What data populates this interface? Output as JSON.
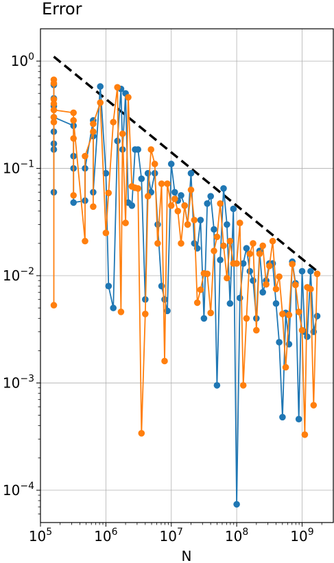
{
  "chart_data": {
    "type": "line",
    "title": "Error",
    "xlabel": "N",
    "ylabel": "",
    "xscale": "log",
    "yscale": "log",
    "xlim": [
      100000,
      3000000000
    ],
    "ylim": [
      5e-05,
      2
    ],
    "xticks": [
      {
        "value": 100000,
        "base": "10",
        "exp": "5"
      },
      {
        "value": 1000000,
        "base": "10",
        "exp": "6"
      },
      {
        "value": 10000000,
        "base": "10",
        "exp": "7"
      },
      {
        "value": 100000000,
        "base": "10",
        "exp": "8"
      },
      {
        "value": 1000000000,
        "base": "10",
        "exp": "9"
      }
    ],
    "yticks": [
      {
        "value": 0.0001,
        "base": "10",
        "exp": "−4"
      },
      {
        "value": 0.001,
        "base": "10",
        "exp": "−3"
      },
      {
        "value": 0.01,
        "base": "10",
        "exp": "−2"
      },
      {
        "value": 0.1,
        "base": "10",
        "exp": "−1"
      },
      {
        "value": 1,
        "base": "10",
        "exp": "0"
      }
    ],
    "grid": true,
    "legend": "none",
    "reference_line": {
      "style": "dashed",
      "color": "#000000",
      "x": [
        160000,
        1700000000
      ],
      "y": [
        1.1,
        0.011
      ]
    },
    "series": [
      {
        "color": "#1f77b4",
        "x": [
          160000,
          160000,
          160000,
          160000,
          160000,
          160000,
          160000,
          160000,
          320000,
          320000,
          320000,
          320000,
          480000,
          480000,
          640000,
          640000,
          640000,
          820000,
          1000000,
          1100000,
          1300000,
          1500000,
          1700000,
          1800000,
          2000000,
          2200000,
          2500000,
          2800000,
          3100000,
          3500000,
          4000000,
          4400000,
          4900000,
          5600000,
          6200000,
          7100000,
          7900000,
          8700000,
          10000000,
          11300000,
          12600000,
          14100000,
          16000000,
          17800000,
          20000000,
          22500000,
          25000000,
          28000000,
          31600000,
          35500000,
          40000000,
          45000000,
          50000000,
          56000000,
          63000000,
          71000000,
          79000000,
          89000000,
          100000000,
          112000000,
          126000000,
          141000000,
          159000000,
          178000000,
          200000000,
          224000000,
          251000000,
          282000000,
          316000000,
          355000000,
          400000000,
          447000000,
          501000000,
          562000000,
          631000000,
          708000000,
          794000000,
          891000000,
          1000000000,
          1100000000,
          1200000000,
          1350000000,
          1500000000,
          1700000000
        ],
        "y": [
          0.6,
          0.45,
          0.38,
          0.22,
          0.17,
          0.15,
          0.06,
          0.3,
          0.25,
          0.13,
          0.1,
          0.048,
          0.05,
          0.1,
          0.28,
          0.2,
          0.06,
          0.58,
          0.09,
          0.008,
          0.005,
          0.18,
          0.55,
          0.15,
          0.5,
          0.048,
          0.045,
          0.15,
          0.15,
          0.08,
          0.006,
          0.09,
          0.06,
          0.09,
          0.03,
          0.008,
          0.006,
          0.0047,
          0.11,
          0.06,
          0.05,
          0.056,
          0.045,
          0.03,
          0.09,
          0.02,
          0.018,
          0.033,
          0.004,
          0.047,
          0.055,
          0.027,
          0.00095,
          0.014,
          0.065,
          0.03,
          0.0055,
          0.042,
          7.4e-05,
          0.0062,
          0.013,
          0.018,
          0.011,
          0.009,
          0.004,
          0.017,
          0.007,
          0.009,
          0.013,
          0.013,
          0.0055,
          0.0024,
          0.00048,
          0.0045,
          0.0023,
          0.0135,
          0.0085,
          0.00046,
          0.011,
          0.003,
          0.0027,
          0.011,
          0.003,
          0.0042
        ]
      },
      {
        "color": "#ff7f0e",
        "x": [
          160000,
          160000,
          160000,
          160000,
          160000,
          160000,
          160000,
          160000,
          320000,
          320000,
          320000,
          320000,
          480000,
          480000,
          640000,
          640000,
          640000,
          820000,
          1000000,
          1100000,
          1300000,
          1500000,
          1700000,
          1800000,
          2000000,
          2200000,
          2500000,
          2800000,
          3100000,
          3500000,
          4000000,
          4400000,
          4900000,
          5600000,
          6200000,
          7100000,
          7900000,
          8700000,
          10000000,
          11300000,
          12600000,
          14100000,
          16000000,
          17800000,
          20000000,
          22500000,
          25000000,
          28000000,
          31600000,
          35500000,
          40000000,
          45000000,
          50000000,
          56000000,
          63000000,
          71000000,
          79000000,
          89000000,
          100000000,
          112000000,
          126000000,
          141000000,
          159000000,
          178000000,
          200000000,
          224000000,
          251000000,
          282000000,
          316000000,
          355000000,
          400000000,
          447000000,
          501000000,
          562000000,
          631000000,
          708000000,
          794000000,
          891000000,
          1000000000,
          1100000000,
          1200000000,
          1350000000,
          1500000000,
          1700000000
        ],
        "y": [
          0.67,
          0.62,
          0.44,
          0.4,
          0.3,
          0.27,
          0.0053,
          0.35,
          0.33,
          0.19,
          0.056,
          0.28,
          0.021,
          0.13,
          0.22,
          0.044,
          0.26,
          0.41,
          0.025,
          0.059,
          0.27,
          0.57,
          0.0046,
          0.21,
          0.031,
          0.46,
          0.068,
          0.066,
          0.065,
          0.00034,
          0.0044,
          0.055,
          0.15,
          0.11,
          0.02,
          0.072,
          0.0016,
          0.072,
          0.045,
          0.052,
          0.04,
          0.02,
          0.045,
          0.03,
          0.063,
          0.033,
          0.0056,
          0.0074,
          0.0105,
          0.0104,
          0.0045,
          0.017,
          0.023,
          0.047,
          0.019,
          0.0095,
          0.021,
          0.013,
          0.013,
          0.031,
          0.00095,
          0.004,
          0.016,
          0.02,
          0.0031,
          0.016,
          0.019,
          0.0083,
          0.0123,
          0.021,
          0.0075,
          0.0098,
          0.0044,
          0.0014,
          0.0043,
          0.0128,
          0.0082,
          0.0046,
          0.0031,
          0.00033,
          0.0078,
          0.0075,
          0.00062,
          0.0104
        ]
      }
    ]
  }
}
